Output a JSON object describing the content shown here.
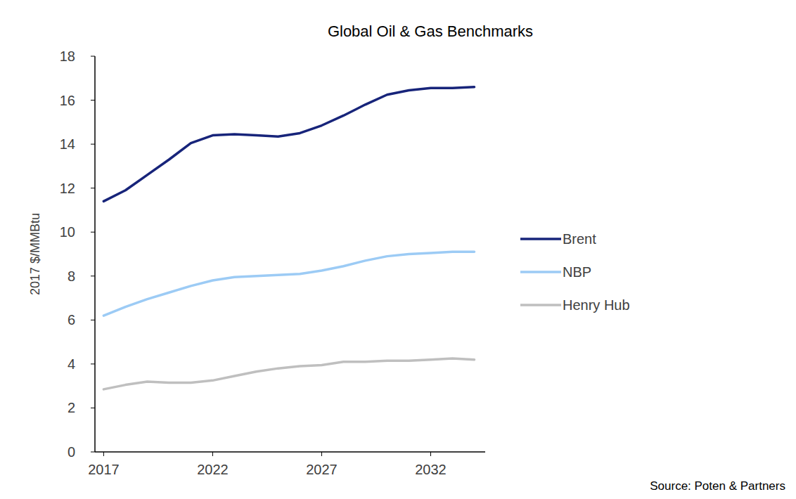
{
  "chart_data": {
    "type": "line",
    "title": "Global Oil & Gas Benchmarks",
    "y_label": "2017 $/MMBtu",
    "source": "Source: Poten & Partners",
    "x": [
      2017,
      2018,
      2019,
      2020,
      2021,
      2022,
      2023,
      2024,
      2025,
      2026,
      2027,
      2028,
      2029,
      2030,
      2031,
      2032,
      2033,
      2034
    ],
    "series": [
      {
        "name": "Brent",
        "color": "#17247a",
        "values": [
          11.4,
          11.9,
          12.6,
          13.3,
          14.05,
          14.4,
          14.45,
          14.4,
          14.35,
          14.5,
          14.85,
          15.3,
          15.8,
          16.25,
          16.45,
          16.55,
          16.55,
          16.6
        ]
      },
      {
        "name": "NBP",
        "color": "#9ccbf5",
        "values": [
          6.2,
          6.6,
          6.95,
          7.25,
          7.55,
          7.8,
          7.95,
          8.0,
          8.05,
          8.1,
          8.25,
          8.45,
          8.7,
          8.9,
          9.0,
          9.05,
          9.1,
          9.1
        ]
      },
      {
        "name": "Henry Hub",
        "color": "#bfbfbf",
        "values": [
          2.85,
          3.05,
          3.2,
          3.15,
          3.15,
          3.25,
          3.45,
          3.65,
          3.8,
          3.9,
          3.95,
          4.1,
          4.1,
          4.15,
          4.15,
          4.2,
          4.25,
          4.2
        ]
      }
    ],
    "xlim": [
      2016.6,
      2034.5
    ],
    "xticks": [
      2017,
      2022,
      2027,
      2032
    ],
    "ylim": [
      0,
      18
    ],
    "yticks": [
      0,
      2,
      4,
      6,
      8,
      10,
      12,
      14,
      16,
      18
    ],
    "grid": false,
    "legend": "right"
  }
}
